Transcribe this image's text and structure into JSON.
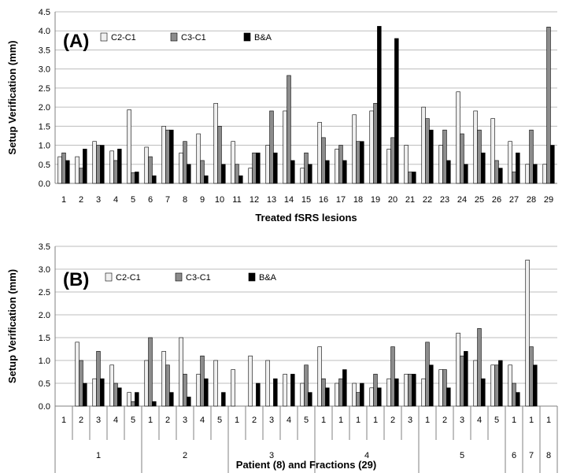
{
  "chart_data": [
    {
      "type": "bar",
      "panel_label": "(A)",
      "xlabel": "Treated fSRS lesions",
      "ylabel": "Setup Verification (mm)",
      "ylim": [
        0,
        4.5
      ],
      "yticks": [
        "0.0",
        "0.5",
        "1.0",
        "1.5",
        "2.0",
        "2.5",
        "3.0",
        "3.5",
        "4.0",
        "4.5"
      ],
      "grid": true,
      "legend": "top-left",
      "categories": [
        "1",
        "2",
        "3",
        "4",
        "5",
        "6",
        "7",
        "8",
        "9",
        "10",
        "11",
        "12",
        "13",
        "14",
        "15",
        "16",
        "17",
        "18",
        "19",
        "20",
        "21",
        "22",
        "23",
        "24",
        "25",
        "26",
        "27",
        "28",
        "29"
      ],
      "series": [
        {
          "name": "C2-C1",
          "color": "#f0f0f0",
          "values": [
            0.7,
            0.7,
            1.1,
            0.85,
            1.93,
            0.95,
            1.5,
            0.8,
            1.3,
            2.1,
            1.1,
            0.4,
            1.0,
            1.9,
            0.4,
            1.6,
            0.9,
            1.8,
            1.9,
            0.9,
            1.0,
            2.0,
            1.0,
            2.4,
            1.9,
            1.7,
            1.1,
            0.5,
            0.5
          ]
        },
        {
          "name": "C3-C1",
          "color": "#8c8c8c",
          "values": [
            0.8,
            0.4,
            1.0,
            0.6,
            0.28,
            0.7,
            1.4,
            1.1,
            0.6,
            1.5,
            0.5,
            0.8,
            1.9,
            2.83,
            0.8,
            1.2,
            1.0,
            1.1,
            2.1,
            1.2,
            0.3,
            1.7,
            1.4,
            1.3,
            1.4,
            0.6,
            0.3,
            1.4,
            4.1
          ]
        },
        {
          "name": "B&A",
          "color": "#000000",
          "values": [
            0.6,
            0.9,
            1.0,
            0.9,
            0.3,
            0.2,
            1.4,
            0.5,
            0.2,
            0.5,
            0.2,
            0.8,
            0.8,
            0.6,
            0.5,
            0.6,
            0.6,
            1.1,
            4.12,
            3.8,
            0.3,
            1.4,
            0.6,
            0.5,
            0.8,
            0.4,
            0.8,
            0.5,
            1.0
          ]
        }
      ]
    },
    {
      "type": "bar",
      "panel_label": "(B)",
      "xlabel": "Patient (8) and Fractions (29)",
      "ylabel": "Setup Verification (mm)",
      "ylim": [
        0,
        3.5
      ],
      "yticks": [
        "0.0",
        "0.5",
        "1.0",
        "1.5",
        "2.0",
        "2.5",
        "3.0",
        "3.5"
      ],
      "grid": true,
      "legend": "top-left",
      "categories": [
        "1",
        "2",
        "3",
        "4",
        "5",
        "1",
        "2",
        "3",
        "4",
        "5",
        "1",
        "2",
        "3",
        "4",
        "5",
        "1",
        "1",
        "1",
        "1",
        "2",
        "3",
        "1",
        "2",
        "3",
        "4",
        "5",
        "1",
        "1",
        "1"
      ],
      "groups": [
        {
          "label": "1",
          "count": 5
        },
        {
          "label": "2",
          "count": 5
        },
        {
          "label": "3",
          "count": 5
        },
        {
          "label": "4",
          "count": 6
        },
        {
          "label": "5",
          "count": 5
        },
        {
          "label": "6",
          "count": 1
        },
        {
          "label": "7",
          "count": 1
        },
        {
          "label": "8",
          "count": 1
        }
      ],
      "series": [
        {
          "name": "C2-C1",
          "color": "#f0f0f0",
          "values": [
            0,
            1.4,
            0.6,
            0.9,
            0.3,
            1.0,
            1.2,
            1.5,
            0.7,
            1.0,
            0.8,
            1.1,
            1.0,
            0.7,
            0.5,
            1.3,
            0.5,
            0.5,
            0.4,
            0.6,
            0.7,
            0.6,
            0.8,
            1.6,
            1.0,
            0.9,
            0.9,
            3.2,
            0
          ]
        },
        {
          "name": "C3-C1",
          "color": "#8c8c8c",
          "values": [
            0,
            1.0,
            1.2,
            0.5,
            0.1,
            1.5,
            0.9,
            0.7,
            1.1,
            0,
            0,
            0,
            0,
            0,
            0.9,
            0.6,
            0.6,
            0.3,
            0.7,
            1.3,
            0.7,
            1.4,
            0.8,
            1.1,
            1.7,
            0.9,
            0.5,
            1.3,
            0
          ]
        },
        {
          "name": "B&A",
          "color": "#000000",
          "values": [
            0,
            0.5,
            0.6,
            0.4,
            0.3,
            0.1,
            0.3,
            0.2,
            0.6,
            0.3,
            0,
            0.5,
            0.6,
            0.7,
            0.3,
            0.4,
            0.8,
            0.5,
            0.4,
            0.6,
            0.7,
            0.9,
            0.4,
            1.2,
            0.6,
            1.0,
            0.3,
            0.9,
            0
          ]
        }
      ]
    }
  ]
}
